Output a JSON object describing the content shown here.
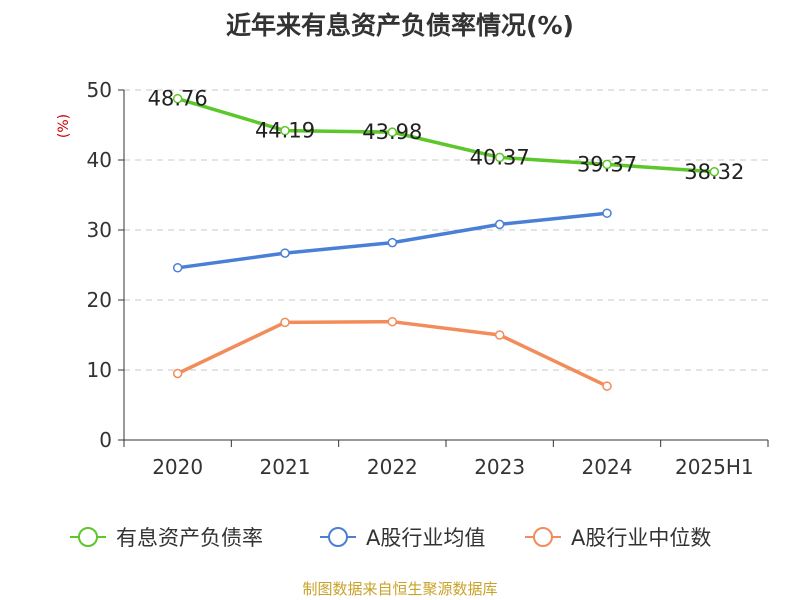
{
  "chart_data": {
    "type": "line",
    "title": "近年来有息资产负债率情况(%)",
    "ylabel": "(%)",
    "categories": [
      "2020",
      "2021",
      "2022",
      "2023",
      "2024",
      "2025H1"
    ],
    "ylim": [
      0,
      50
    ],
    "yticks": [
      0,
      10,
      20,
      30,
      40,
      50
    ],
    "grid": "horizontal-dashed",
    "legend_position": "bottom",
    "series": [
      {
        "name": "有息资产负债率",
        "color": "#5cc72a",
        "values": [
          48.76,
          44.19,
          43.98,
          40.37,
          39.37,
          38.32
        ],
        "labels": [
          "48.76",
          "44.19",
          "43.98",
          "40.37",
          "39.37",
          "38.32"
        ]
      },
      {
        "name": "A股行业均值",
        "color": "#4a7fd6",
        "values": [
          24.6,
          26.7,
          28.2,
          30.8,
          32.4,
          null
        ]
      },
      {
        "name": "A股行业中位数",
        "color": "#f28c5a",
        "values": [
          9.5,
          16.8,
          16.9,
          15.0,
          7.7,
          null
        ]
      }
    ]
  },
  "footer": "制图数据来自恒生聚源数据库"
}
